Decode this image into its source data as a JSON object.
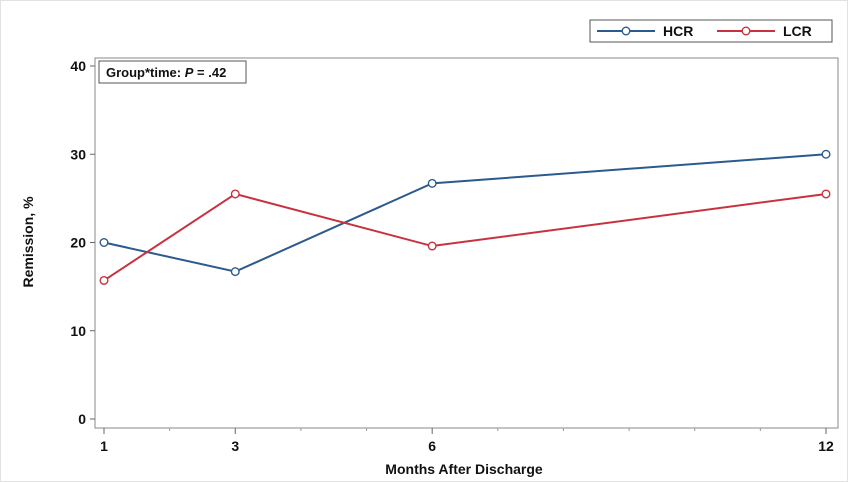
{
  "chart_data": {
    "type": "line",
    "x": [
      1,
      3,
      6,
      12
    ],
    "x_tick_labels": [
      "1",
      "3",
      "6",
      "12"
    ],
    "series": [
      {
        "name": "HCR",
        "values": [
          20.0,
          16.7,
          26.7,
          30.0
        ],
        "color": "#2b5a8c"
      },
      {
        "name": "LCR",
        "values": [
          15.7,
          25.5,
          19.6,
          25.5
        ],
        "color": "#c8323f"
      }
    ],
    "y_ticks": [
      0,
      10,
      20,
      30,
      40
    ],
    "ylim": [
      0,
      40
    ],
    "xlabel": "Months After Discharge",
    "ylabel": "Remission, %",
    "annotation": {
      "prefix": "Group*time: ",
      "p_symbol": "P",
      "suffix": " = .42"
    },
    "legend_position": "top-right",
    "grid": false
  }
}
